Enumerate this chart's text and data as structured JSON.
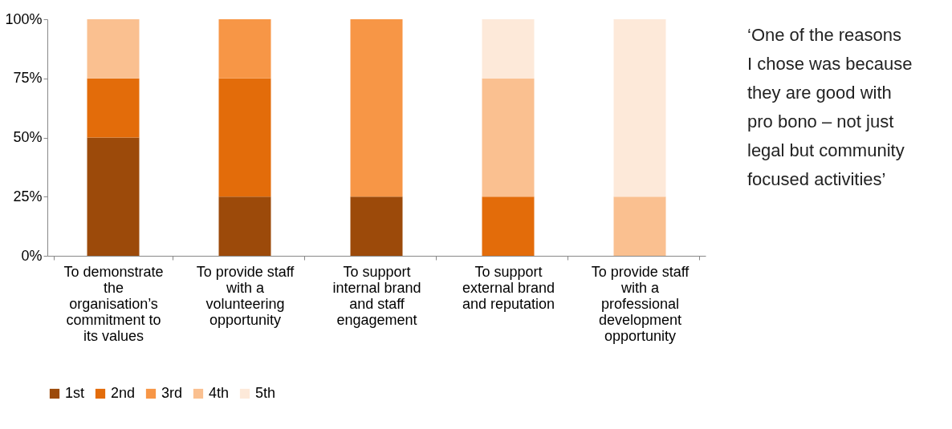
{
  "chart_data": {
    "type": "bar",
    "stacked": true,
    "categories": [
      "To demonstrate the organisation’s commitment to its values",
      "To provide staff with a volunteering opportunity",
      "To support internal brand and staff engagement",
      "To support external brand and reputation",
      "To provide staff with a professional development opportunity"
    ],
    "series": [
      {
        "name": "1st",
        "color": "#9c4a0a",
        "values": [
          50,
          25,
          25,
          null,
          null
        ]
      },
      {
        "name": "2nd",
        "color": "#e36c0a",
        "values": [
          25,
          50,
          null,
          25,
          null
        ]
      },
      {
        "name": "3rd",
        "color": "#f79646",
        "values": [
          null,
          25,
          75,
          null,
          null
        ]
      },
      {
        "name": "4th",
        "color": "#fac090",
        "values": [
          25,
          null,
          null,
          50,
          25
        ]
      },
      {
        "name": "5th",
        "color": "#fde9d9",
        "values": [
          null,
          null,
          null,
          25,
          75
        ]
      }
    ],
    "ylim": [
      0,
      100
    ],
    "yticks": [
      {
        "value": 0,
        "label": "0%"
      },
      {
        "value": 25,
        "label": "25%"
      },
      {
        "value": 50,
        "label": "50%"
      },
      {
        "value": 75,
        "label": "75%"
      },
      {
        "value": 100,
        "label": "100%"
      }
    ],
    "grid": false,
    "legend": "bottom",
    "annotations": [
      "‘One of the reasons I chose was because they are good with pro bono – not just legal but community focused activities’"
    ]
  }
}
